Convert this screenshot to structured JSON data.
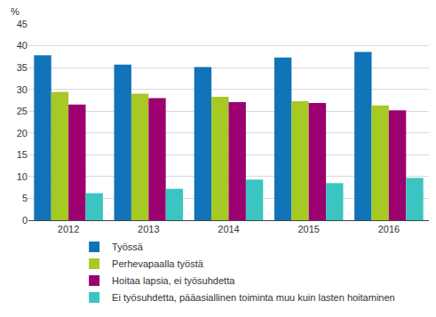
{
  "chart_data": {
    "type": "bar",
    "ylabel": "%",
    "categories": [
      "2012",
      "2013",
      "2014",
      "2015",
      "2016"
    ],
    "series": [
      {
        "name": "Työssä",
        "color": "#1173b8",
        "values": [
          37.8,
          35.7,
          35.1,
          37.3,
          38.6
        ]
      },
      {
        "name": "Perhevapaalla työstä",
        "color": "#a6c924",
        "values": [
          29.4,
          29.0,
          28.3,
          27.3,
          26.3
        ]
      },
      {
        "name": "Hoitaa lapsia, ei työsuhdetta",
        "color": "#9c0070",
        "values": [
          26.5,
          28.0,
          27.1,
          26.9,
          25.2
        ]
      },
      {
        "name": "Ei työsuhdetta, pääasiallinen toiminta muu kuin lasten hoitaminen",
        "color": "#3bc4c1",
        "values": [
          6.2,
          7.2,
          9.3,
          8.5,
          9.7
        ]
      }
    ],
    "ylim": [
      0,
      45
    ],
    "yticks": [
      0,
      5,
      10,
      15,
      20,
      25,
      30,
      35,
      40,
      45
    ],
    "grid": true,
    "legend": "bottom"
  }
}
